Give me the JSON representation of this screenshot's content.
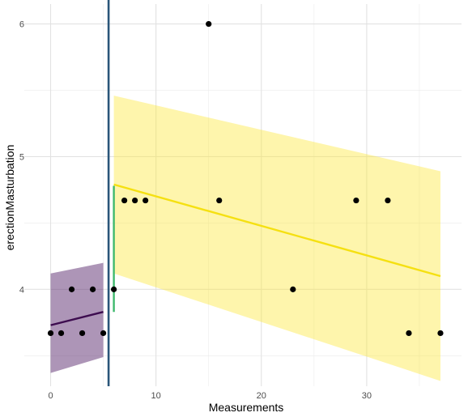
{
  "chart_data": {
    "type": "scatter",
    "title": "",
    "xlabel": "Measurements",
    "ylabel": "erectionMasturbation",
    "xlim": [
      -2.5,
      39
    ],
    "ylim": [
      3.27,
      6.15
    ],
    "x_ticks": [
      0,
      10,
      20,
      30
    ],
    "x_minor_ticks": [
      5,
      15,
      25,
      35
    ],
    "y_ticks": [
      4,
      5,
      6
    ],
    "y_minor_ticks": [
      3.5,
      4.5,
      5.5
    ],
    "grid": true,
    "legend": "none",
    "points": [
      {
        "x": 0,
        "y": 3.67
      },
      {
        "x": 1,
        "y": 3.67
      },
      {
        "x": 2,
        "y": 4.0
      },
      {
        "x": 3,
        "y": 3.67
      },
      {
        "x": 4,
        "y": 4.0
      },
      {
        "x": 5,
        "y": 3.67
      },
      {
        "x": 6,
        "y": 4.0
      },
      {
        "x": 7,
        "y": 4.67
      },
      {
        "x": 8,
        "y": 4.67
      },
      {
        "x": 9,
        "y": 4.67
      },
      {
        "x": 15,
        "y": 6.0
      },
      {
        "x": 16,
        "y": 4.67
      },
      {
        "x": 23,
        "y": 4.0
      },
      {
        "x": 29,
        "y": 4.67
      },
      {
        "x": 32,
        "y": 4.67
      },
      {
        "x": 34,
        "y": 3.67
      },
      {
        "x": 37,
        "y": 3.67
      }
    ],
    "vline": {
      "x": 5.5,
      "color": "#2a5679"
    },
    "jump": {
      "x": 6,
      "y_from": 3.83,
      "y_to": 4.78,
      "color": "#3fb96d"
    },
    "segments": [
      {
        "x_range": [
          0,
          5
        ],
        "y_start": 3.73,
        "y_end": 3.83,
        "ci_lower": [
          3.37,
          3.49
        ],
        "ci_upper": [
          4.12,
          4.2
        ],
        "line_color": "#3d0c4f",
        "ribbon_color": "#5b2c6f"
      },
      {
        "x_range": [
          6,
          37
        ],
        "y_start": 4.79,
        "y_end": 4.1,
        "ci_lower": [
          4.12,
          3.31
        ],
        "ci_upper": [
          5.46,
          4.89
        ],
        "line_color": "#f5e011",
        "ribbon_color": "#fce83a"
      }
    ]
  }
}
